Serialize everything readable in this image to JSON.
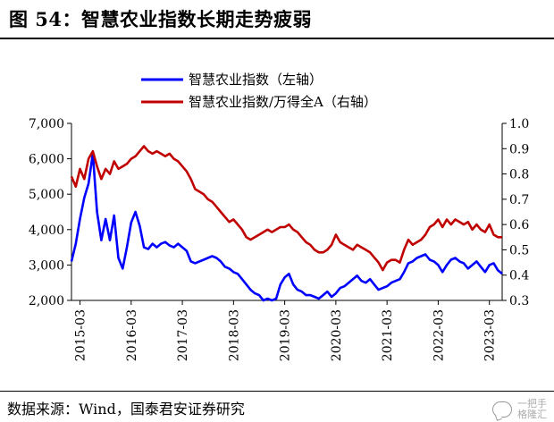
{
  "figure": {
    "title": "图 54：智慧农业指数长期走势疲弱",
    "source": "数据来源：Wind，国泰君安证券研究",
    "watermark_icon": "wechat-icon",
    "watermark_text_top": "一把手",
    "watermark_text_bottom": "格隆汇"
  },
  "chart_data": {
    "type": "line",
    "title": "",
    "xlabel": "",
    "ylabel_left": "",
    "ylabel_right": "",
    "x_range": [
      "2015-01",
      "2023-06"
    ],
    "x_ticks": [
      "2015-03",
      "2016-03",
      "2017-03",
      "2018-03",
      "2019-03",
      "2020-03",
      "2021-03",
      "2022-03",
      "2023-03"
    ],
    "ylim_left": [
      2000,
      7000
    ],
    "yticks_left": [
      "2,000",
      "3,000",
      "4,000",
      "5,000",
      "6,000",
      "7,000"
    ],
    "ylim_right": [
      0.3,
      1.0
    ],
    "yticks_right": [
      "0.3",
      "0.4",
      "0.5",
      "0.6",
      "0.7",
      "0.8",
      "0.9",
      "1.0"
    ],
    "grid": false,
    "legend_position": "top-center",
    "series": [
      {
        "name": "智慧农业指数（左轴）",
        "axis": "left",
        "color": "#0000ff",
        "points": [
          [
            "2015-01",
            3100
          ],
          [
            "2015-02",
            3600
          ],
          [
            "2015-03",
            4300
          ],
          [
            "2015-04",
            4900
          ],
          [
            "2015-05",
            5300
          ],
          [
            "2015-06",
            6150
          ],
          [
            "2015-07",
            4500
          ],
          [
            "2015-08",
            3700
          ],
          [
            "2015-09",
            4300
          ],
          [
            "2015-10",
            3700
          ],
          [
            "2015-11",
            4400
          ],
          [
            "2015-12",
            3200
          ],
          [
            "2016-01",
            2900
          ],
          [
            "2016-02",
            3500
          ],
          [
            "2016-03",
            4200
          ],
          [
            "2016-04",
            4500
          ],
          [
            "2016-05",
            4100
          ],
          [
            "2016-06",
            3500
          ],
          [
            "2016-07",
            3450
          ],
          [
            "2016-08",
            3600
          ],
          [
            "2016-09",
            3500
          ],
          [
            "2016-10",
            3600
          ],
          [
            "2016-11",
            3650
          ],
          [
            "2016-12",
            3550
          ],
          [
            "2017-01",
            3500
          ],
          [
            "2017-02",
            3600
          ],
          [
            "2017-03",
            3500
          ],
          [
            "2017-04",
            3400
          ],
          [
            "2017-05",
            3100
          ],
          [
            "2017-06",
            3050
          ],
          [
            "2017-07",
            3100
          ],
          [
            "2017-08",
            3150
          ],
          [
            "2017-09",
            3200
          ],
          [
            "2017-10",
            3250
          ],
          [
            "2017-11",
            3200
          ],
          [
            "2017-12",
            3100
          ],
          [
            "2018-01",
            2950
          ],
          [
            "2018-02",
            2900
          ],
          [
            "2018-03",
            2800
          ],
          [
            "2018-04",
            2750
          ],
          [
            "2018-05",
            2600
          ],
          [
            "2018-06",
            2450
          ],
          [
            "2018-07",
            2300
          ],
          [
            "2018-08",
            2200
          ],
          [
            "2018-09",
            2150
          ],
          [
            "2018-10",
            2000
          ],
          [
            "2018-11",
            2050
          ],
          [
            "2018-12",
            2000
          ],
          [
            "2019-01",
            2050
          ],
          [
            "2019-02",
            2450
          ],
          [
            "2019-03",
            2650
          ],
          [
            "2019-04",
            2750
          ],
          [
            "2019-05",
            2450
          ],
          [
            "2019-06",
            2300
          ],
          [
            "2019-07",
            2250
          ],
          [
            "2019-08",
            2150
          ],
          [
            "2019-09",
            2150
          ],
          [
            "2019-10",
            2100
          ],
          [
            "2019-11",
            2050
          ],
          [
            "2019-12",
            2150
          ],
          [
            "2020-01",
            2250
          ],
          [
            "2020-02",
            2100
          ],
          [
            "2020-03",
            2200
          ],
          [
            "2020-04",
            2350
          ],
          [
            "2020-05",
            2400
          ],
          [
            "2020-06",
            2500
          ],
          [
            "2020-07",
            2600
          ],
          [
            "2020-08",
            2700
          ],
          [
            "2020-09",
            2550
          ],
          [
            "2020-10",
            2500
          ],
          [
            "2020-11",
            2600
          ],
          [
            "2020-12",
            2450
          ],
          [
            "2021-01",
            2300
          ],
          [
            "2021-02",
            2350
          ],
          [
            "2021-03",
            2400
          ],
          [
            "2021-04",
            2500
          ],
          [
            "2021-05",
            2550
          ],
          [
            "2021-06",
            2600
          ],
          [
            "2021-07",
            2800
          ],
          [
            "2021-08",
            3050
          ],
          [
            "2021-09",
            3100
          ],
          [
            "2021-10",
            3200
          ],
          [
            "2021-11",
            3250
          ],
          [
            "2021-12",
            3300
          ],
          [
            "2022-01",
            3150
          ],
          [
            "2022-02",
            3100
          ],
          [
            "2022-03",
            3000
          ],
          [
            "2022-04",
            2800
          ],
          [
            "2022-05",
            3000
          ],
          [
            "2022-06",
            3150
          ],
          [
            "2022-07",
            3200
          ],
          [
            "2022-08",
            3100
          ],
          [
            "2022-09",
            3050
          ],
          [
            "2022-10",
            2900
          ],
          [
            "2022-11",
            3000
          ],
          [
            "2022-12",
            3100
          ],
          [
            "2023-01",
            2950
          ],
          [
            "2023-02",
            2800
          ],
          [
            "2023-03",
            3000
          ],
          [
            "2023-04",
            3050
          ],
          [
            "2023-05",
            2850
          ],
          [
            "2023-06",
            2750
          ]
        ]
      },
      {
        "name": "智慧农业指数/万得全A（右轴）",
        "axis": "right",
        "color": "#c00000",
        "points": [
          [
            "2015-01",
            0.79
          ],
          [
            "2015-02",
            0.75
          ],
          [
            "2015-03",
            0.82
          ],
          [
            "2015-04",
            0.78
          ],
          [
            "2015-05",
            0.86
          ],
          [
            "2015-06",
            0.89
          ],
          [
            "2015-07",
            0.83
          ],
          [
            "2015-08",
            0.78
          ],
          [
            "2015-09",
            0.82
          ],
          [
            "2015-10",
            0.8
          ],
          [
            "2015-11",
            0.85
          ],
          [
            "2015-12",
            0.82
          ],
          [
            "2016-01",
            0.83
          ],
          [
            "2016-02",
            0.84
          ],
          [
            "2016-03",
            0.86
          ],
          [
            "2016-04",
            0.87
          ],
          [
            "2016-05",
            0.89
          ],
          [
            "2016-06",
            0.91
          ],
          [
            "2016-07",
            0.89
          ],
          [
            "2016-08",
            0.88
          ],
          [
            "2016-09",
            0.89
          ],
          [
            "2016-10",
            0.88
          ],
          [
            "2016-11",
            0.87
          ],
          [
            "2016-12",
            0.88
          ],
          [
            "2017-01",
            0.86
          ],
          [
            "2017-02",
            0.85
          ],
          [
            "2017-03",
            0.83
          ],
          [
            "2017-04",
            0.81
          ],
          [
            "2017-05",
            0.78
          ],
          [
            "2017-06",
            0.74
          ],
          [
            "2017-07",
            0.73
          ],
          [
            "2017-08",
            0.72
          ],
          [
            "2017-09",
            0.7
          ],
          [
            "2017-10",
            0.69
          ],
          [
            "2017-11",
            0.67
          ],
          [
            "2017-12",
            0.65
          ],
          [
            "2018-01",
            0.63
          ],
          [
            "2018-02",
            0.61
          ],
          [
            "2018-03",
            0.62
          ],
          [
            "2018-04",
            0.6
          ],
          [
            "2018-05",
            0.58
          ],
          [
            "2018-06",
            0.55
          ],
          [
            "2018-07",
            0.54
          ],
          [
            "2018-08",
            0.55
          ],
          [
            "2018-09",
            0.56
          ],
          [
            "2018-10",
            0.57
          ],
          [
            "2018-11",
            0.58
          ],
          [
            "2018-12",
            0.57
          ],
          [
            "2019-01",
            0.58
          ],
          [
            "2019-02",
            0.59
          ],
          [
            "2019-03",
            0.59
          ],
          [
            "2019-04",
            0.6
          ],
          [
            "2019-05",
            0.58
          ],
          [
            "2019-06",
            0.57
          ],
          [
            "2019-07",
            0.55
          ],
          [
            "2019-08",
            0.53
          ],
          [
            "2019-09",
            0.52
          ],
          [
            "2019-10",
            0.5
          ],
          [
            "2019-11",
            0.49
          ],
          [
            "2019-12",
            0.49
          ],
          [
            "2020-01",
            0.5
          ],
          [
            "2020-02",
            0.52
          ],
          [
            "2020-03",
            0.56
          ],
          [
            "2020-04",
            0.53
          ],
          [
            "2020-05",
            0.52
          ],
          [
            "2020-06",
            0.51
          ],
          [
            "2020-07",
            0.5
          ],
          [
            "2020-08",
            0.52
          ],
          [
            "2020-09",
            0.51
          ],
          [
            "2020-10",
            0.5
          ],
          [
            "2020-11",
            0.49
          ],
          [
            "2020-12",
            0.47
          ],
          [
            "2021-01",
            0.45
          ],
          [
            "2021-02",
            0.42
          ],
          [
            "2021-03",
            0.45
          ],
          [
            "2021-04",
            0.46
          ],
          [
            "2021-05",
            0.46
          ],
          [
            "2021-06",
            0.45
          ],
          [
            "2021-07",
            0.5
          ],
          [
            "2021-08",
            0.54
          ],
          [
            "2021-09",
            0.52
          ],
          [
            "2021-10",
            0.53
          ],
          [
            "2021-11",
            0.54
          ],
          [
            "2021-12",
            0.56
          ],
          [
            "2022-01",
            0.59
          ],
          [
            "2022-02",
            0.6
          ],
          [
            "2022-03",
            0.62
          ],
          [
            "2022-04",
            0.59
          ],
          [
            "2022-05",
            0.62
          ],
          [
            "2022-06",
            0.6
          ],
          [
            "2022-07",
            0.62
          ],
          [
            "2022-08",
            0.61
          ],
          [
            "2022-09",
            0.6
          ],
          [
            "2022-10",
            0.61
          ],
          [
            "2022-11",
            0.58
          ],
          [
            "2022-12",
            0.6
          ],
          [
            "2023-01",
            0.58
          ],
          [
            "2023-02",
            0.57
          ],
          [
            "2023-03",
            0.6
          ],
          [
            "2023-04",
            0.56
          ],
          [
            "2023-05",
            0.55
          ],
          [
            "2023-06",
            0.55
          ]
        ]
      }
    ]
  }
}
